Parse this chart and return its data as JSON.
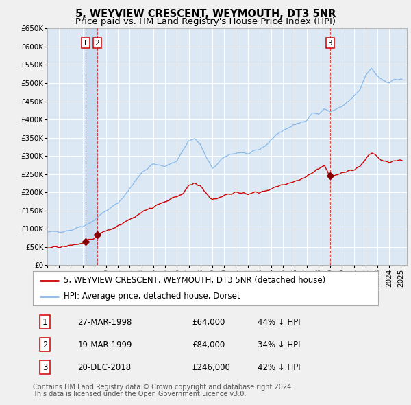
{
  "title": "5, WEYVIEW CRESCENT, WEYMOUTH, DT3 5NR",
  "subtitle": "Price paid vs. HM Land Registry's House Price Index (HPI)",
  "ylim": [
    0,
    650000
  ],
  "yticks": [
    0,
    50000,
    100000,
    150000,
    200000,
    250000,
    300000,
    350000,
    400000,
    450000,
    500000,
    550000,
    600000,
    650000
  ],
  "background_color": "#f0f0f0",
  "plot_bg_color": "#dce9f5",
  "grid_color": "#ffffff",
  "hpi_color": "#88b8e8",
  "price_color": "#cc0000",
  "marker_color": "#880000",
  "vline_color": "#cc0000",
  "vband_color": "#c5d9ee",
  "transactions": [
    {
      "num": 1,
      "date_num": 1998.23,
      "price": 64000,
      "label": "27-MAR-1998",
      "price_str": "£64,000",
      "pct": "44% ↓ HPI"
    },
    {
      "num": 2,
      "date_num": 1999.22,
      "price": 84000,
      "label": "19-MAR-1999",
      "price_str": "£84,000",
      "pct": "34% ↓ HPI"
    },
    {
      "num": 3,
      "date_num": 2018.97,
      "price": 246000,
      "label": "20-DEC-2018",
      "price_str": "£246,000",
      "pct": "42% ↓ HPI"
    }
  ],
  "legend_label_price": "5, WEYVIEW CRESCENT, WEYMOUTH, DT3 5NR (detached house)",
  "legend_label_hpi": "HPI: Average price, detached house, Dorset",
  "footer_line1": "Contains HM Land Registry data © Crown copyright and database right 2024.",
  "footer_line2": "This data is licensed under the Open Government Licence v3.0.",
  "title_fontsize": 10.5,
  "subtitle_fontsize": 9.5,
  "tick_fontsize": 7.5,
  "legend_fontsize": 8.5,
  "table_fontsize": 8.5,
  "footer_fontsize": 7.0,
  "hpi_anchors_x": [
    1995.0,
    1996.0,
    1997.0,
    1997.5,
    1998.0,
    1998.5,
    1999.0,
    1999.5,
    2000.0,
    2001.0,
    2002.0,
    2003.0,
    2004.0,
    2005.0,
    2006.0,
    2007.0,
    2007.5,
    2008.0,
    2008.5,
    2009.0,
    2009.5,
    2010.0,
    2010.5,
    2011.0,
    2011.5,
    2012.0,
    2012.5,
    2013.0,
    2013.5,
    2014.0,
    2014.5,
    2015.0,
    2015.5,
    2016.0,
    2016.5,
    2017.0,
    2017.5,
    2018.0,
    2018.5,
    2019.0,
    2019.5,
    2020.0,
    2020.5,
    2021.0,
    2021.5,
    2022.0,
    2022.5,
    2023.0,
    2023.5,
    2024.0,
    2024.5
  ],
  "hpi_anchors_y": [
    90000,
    93000,
    97000,
    103000,
    108000,
    115000,
    125000,
    138000,
    150000,
    170000,
    210000,
    255000,
    278000,
    270000,
    288000,
    342000,
    348000,
    330000,
    295000,
    265000,
    280000,
    295000,
    305000,
    308000,
    310000,
    305000,
    310000,
    318000,
    328000,
    345000,
    360000,
    370000,
    378000,
    385000,
    392000,
    400000,
    418000,
    415000,
    428000,
    422000,
    428000,
    435000,
    448000,
    462000,
    480000,
    520000,
    540000,
    520000,
    508000,
    502000,
    510000
  ],
  "price_anchors_x": [
    1995.0,
    1995.5,
    1996.0,
    1996.5,
    1997.0,
    1997.5,
    1998.0,
    1998.23,
    1998.5,
    1999.0,
    1999.22,
    1999.5,
    2000.0,
    2001.0,
    2002.0,
    2003.0,
    2004.0,
    2005.0,
    2005.5,
    2006.0,
    2006.5,
    2007.0,
    2007.5,
    2008.0,
    2008.5,
    2009.0,
    2009.5,
    2010.0,
    2011.0,
    2012.0,
    2013.0,
    2014.0,
    2015.0,
    2016.0,
    2017.0,
    2017.5,
    2018.0,
    2018.5,
    2018.97,
    2019.0,
    2019.5,
    2020.0,
    2020.5,
    2021.0,
    2021.5,
    2022.0,
    2022.5,
    2023.0,
    2023.5,
    2024.0,
    2024.5
  ],
  "price_anchors_y": [
    48000,
    49000,
    50000,
    52000,
    54000,
    57000,
    60000,
    64000,
    68000,
    74000,
    84000,
    88000,
    94000,
    108000,
    125000,
    145000,
    162000,
    175000,
    182000,
    188000,
    198000,
    218000,
    224000,
    218000,
    196000,
    177000,
    183000,
    192000,
    200000,
    196000,
    200000,
    210000,
    220000,
    230000,
    244000,
    256000,
    264000,
    274000,
    246000,
    245000,
    248000,
    253000,
    258000,
    263000,
    270000,
    293000,
    308000,
    298000,
    286000,
    280000,
    288000
  ]
}
